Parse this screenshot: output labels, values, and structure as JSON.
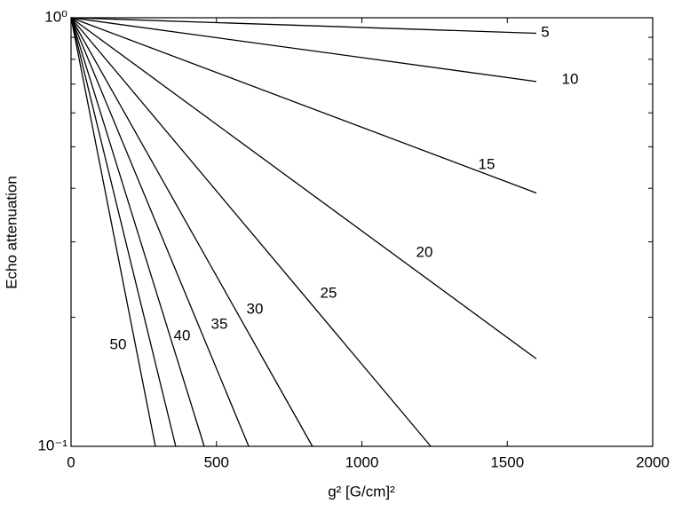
{
  "chart_data": {
    "type": "line",
    "y_label": "Echo attenuation",
    "x_label": "g² [G/cm]²",
    "log_y": true,
    "color": "#000000",
    "xlim": [
      0,
      2000
    ],
    "xticks": [
      0,
      500,
      1000,
      1500,
      2000
    ],
    "ylim": [
      0.1,
      1
    ],
    "yticks": [
      {
        "value": 0.1,
        "label": "10⁻¹"
      },
      {
        "value": 1,
        "label": "10⁰"
      }
    ],
    "yminorticks": [
      0.2,
      0.3,
      0.4,
      0.5,
      0.6,
      0.7,
      0.8,
      0.9
    ],
    "series": [
      {
        "name": "5",
        "x": [
          0,
          1600
        ],
        "values": [
          1,
          0.92
        ]
      },
      {
        "name": "10",
        "x": [
          0,
          1600
        ],
        "values": [
          1,
          0.71
        ]
      },
      {
        "name": "15",
        "x": [
          0,
          1600
        ],
        "values": [
          1,
          0.39
        ]
      },
      {
        "name": "20",
        "x": [
          0,
          1600
        ],
        "values": [
          1,
          0.16
        ]
      },
      {
        "name": "25",
        "x": [
          0,
          1237
        ],
        "values": [
          1,
          0.1
        ]
      },
      {
        "name": "30",
        "x": [
          0,
          830
        ],
        "values": [
          1,
          0.1
        ]
      },
      {
        "name": "35",
        "x": [
          0,
          611
        ],
        "values": [
          1,
          0.1
        ]
      },
      {
        "name": "40",
        "x": [
          0,
          458
        ],
        "values": [
          1,
          0.1
        ]
      },
      {
        "name": null,
        "x": [
          0,
          360
        ],
        "values": [
          1,
          0.1
        ]
      },
      {
        "name": "50",
        "x": [
          0,
          290
        ],
        "values": [
          1,
          0.1
        ]
      }
    ]
  }
}
